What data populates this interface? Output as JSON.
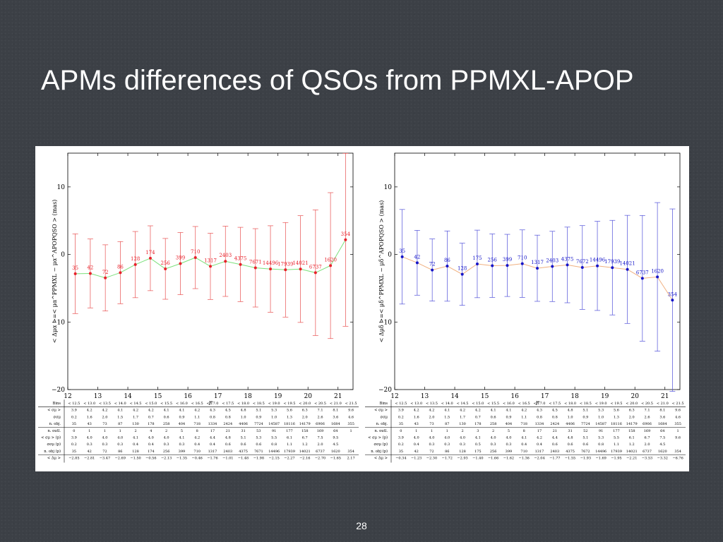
{
  "slide": {
    "title": "APMs differences of QSOs from PPMXL-APOP",
    "page_number": "28"
  },
  "chart_data": [
    {
      "type": "line",
      "xlabel": "r",
      "ylabel": "< Δμα >=< μα^PPMXL − μα^APOPQSO > (mas)",
      "xlim": [
        12,
        21.5
      ],
      "ylim": [
        -20,
        15
      ],
      "xticks": [
        "12",
        "13",
        "14",
        "15",
        "16",
        "17",
        "18",
        "19",
        "20",
        "21"
      ],
      "yticks": [
        "10",
        "0",
        "−10",
        "−20"
      ],
      "colors": {
        "points": "#e8202a",
        "line": "#7be07b",
        "errorbars": "#e85050"
      },
      "x": [
        12.25,
        12.75,
        13.25,
        13.75,
        14.25,
        14.75,
        15.25,
        15.75,
        16.25,
        16.75,
        17.25,
        17.75,
        18.25,
        18.75,
        19.25,
        19.75,
        20.25,
        20.75,
        21.25
      ],
      "y": [
        -2.85,
        -2.81,
        -3.47,
        -2.69,
        -1.5,
        -0.56,
        -2.13,
        -1.35,
        -0.46,
        -1.76,
        -1.01,
        -1.48,
        -1.98,
        -2.15,
        -2.27,
        -2.16,
        -2.7,
        -1.65,
        2.17
      ],
      "yerr": [
        5.9,
        5.1,
        4.9,
        4.6,
        4.9,
        4.8,
        4.5,
        4.6,
        4.6,
        4.9,
        5.2,
        5.5,
        5.8,
        6.4,
        7.0,
        7.9,
        9.3,
        10.8,
        12.8
      ],
      "point_labels": [
        "35",
        "42",
        "72",
        "86",
        "128",
        "174",
        "256",
        "399",
        "710",
        "1317",
        "2403",
        "4375",
        "7671",
        "14496",
        "17939",
        "14021",
        "6737",
        "1620",
        "354"
      ],
      "table": {
        "header": [
          "Bins",
          "< 12.5",
          "< 13.0",
          "< 13.5",
          "< 14.0",
          "< 14.5",
          "< 15.0",
          "< 15.5",
          "< 16.0",
          "< 16.5",
          "< 17.0",
          "< 17.5",
          "< 18.0",
          "< 18.5",
          "< 19.0",
          "< 19.5",
          "< 20.0",
          "< 20.5",
          "< 21.0",
          "< 21.5"
        ],
        "rows": [
          [
            "< σμ >",
            "3.9",
            "4.2",
            "4.2",
            "4.1",
            "4.2",
            "4.2",
            "4.1",
            "4.1",
            "4.2",
            "4.3",
            "4.5",
            "4.8",
            "5.1",
            "5.3",
            "5.6",
            "6.3",
            "7.1",
            "8.1",
            "9.6"
          ],
          [
            "σσμ",
            "0.2",
            "1.6",
            "2.0",
            "1.5",
            "1.7",
            "0.7",
            "0.6",
            "0.9",
            "1.1",
            "0.8",
            "0.8",
            "1.0",
            "0.9",
            "1.0",
            "1.3",
            "2.0",
            "2.6",
            "3.6",
            "4.6"
          ],
          [
            "n. obj.",
            "35",
            "43",
            "73",
            "87",
            "130",
            "178",
            "258",
            "404",
            "718",
            "1334",
            "2424",
            "4406",
            "7724",
            "14587",
            "18116",
            "14179",
            "6906",
            "1684",
            "355"
          ],
          [
            "n. outl.",
            "0",
            "1",
            "1",
            "1",
            "2",
            "4",
            "2",
            "5",
            "8",
            "17",
            "21",
            "31",
            "53",
            "91",
            "177",
            "158",
            "169",
            "64",
            "1"
          ],
          [
            "< σμ > (p)",
            "3.9",
            "4.0",
            "4.0",
            "4.0",
            "4.1",
            "4.0",
            "4.0",
            "4.1",
            "4.2",
            "4.4",
            "4.8",
            "5.1",
            "5.3",
            "5.5",
            "6.1",
            "6.7",
            "7.5",
            "9.5",
            ""
          ],
          [
            "σσμ (p)",
            "0.2",
            "0.3",
            "0.3",
            "0.3",
            "0.4",
            "0.4",
            "0.3",
            "0.3",
            "0.4",
            "0.4",
            "0.6",
            "0.6",
            "0.6",
            "0.8",
            "1.1",
            "1.2",
            "2.0",
            "4.5",
            ""
          ],
          [
            "n. obj (p)",
            "35",
            "42",
            "72",
            "86",
            "128",
            "174",
            "256",
            "399",
            "710",
            "1317",
            "2403",
            "4375",
            "7671",
            "14496",
            "17939",
            "14021",
            "6737",
            "1620",
            "354"
          ],
          [
            "< Δμ >",
            "−2.85",
            "−2.81",
            "−3.47",
            "−2.69",
            "−1.50",
            "−0.56",
            "−2.13",
            "−1.35",
            "−0.46",
            "−1.76",
            "−1.01",
            "−1.48",
            "−1.98",
            "−2.15",
            "−2.27",
            "−2.16",
            "−2.70",
            "−1.65",
            "2.17"
          ]
        ]
      }
    },
    {
      "type": "line",
      "xlabel": "r",
      "ylabel": "< Δμδ >=< μδ^PPMXL − μδ^APOPQSO > (mas)",
      "xlim": [
        12,
        21.5
      ],
      "ylim": [
        -20,
        15
      ],
      "xticks": [
        "12",
        "13",
        "14",
        "15",
        "16",
        "17",
        "18",
        "19",
        "20",
        "21"
      ],
      "yticks": [
        "10",
        "0",
        "−10",
        "−20"
      ],
      "colors": {
        "points": "#1414c8",
        "line": "#f0b080",
        "errorbars": "#5050d8"
      },
      "x": [
        12.25,
        12.75,
        13.25,
        13.75,
        14.25,
        14.75,
        15.25,
        15.75,
        16.25,
        16.75,
        17.25,
        17.75,
        18.25,
        18.75,
        19.25,
        19.75,
        20.25,
        20.75,
        21.25
      ],
      "y": [
        -0.34,
        -1.23,
        -2.3,
        -1.72,
        -2.93,
        -1.4,
        -1.66,
        -1.62,
        -1.36,
        -2.04,
        -1.77,
        -1.55,
        -1.93,
        -1.69,
        -1.95,
        -2.21,
        -3.53,
        -3.32,
        -6.76
      ],
      "yerr": [
        7.0,
        4.8,
        4.6,
        5.2,
        4.6,
        5.0,
        4.7,
        4.6,
        5.0,
        4.9,
        5.2,
        5.6,
        6.2,
        6.6,
        7.0,
        8.0,
        9.3,
        11.0,
        13.5
      ],
      "point_labels": [
        "35",
        "42",
        "72",
        "86",
        "128",
        "175",
        "256",
        "399",
        "710",
        "1317",
        "2403",
        "4375",
        "7672",
        "14496",
        "17939",
        "14021",
        "6737",
        "1620",
        "354"
      ],
      "table": {
        "header": [
          "Bins",
          "< 12.5",
          "< 13.0",
          "< 13.5",
          "< 14.0",
          "< 14.5",
          "< 15.0",
          "< 15.5",
          "< 16.0",
          "< 16.5",
          "< 17.0",
          "< 17.5",
          "< 18.0",
          "< 18.5",
          "< 19.0",
          "< 19.5",
          "< 20.0",
          "< 20.5",
          "< 21.0",
          "< 21.5"
        ],
        "rows": [
          [
            "< σμ >",
            "3.9",
            "4.2",
            "4.2",
            "4.1",
            "4.2",
            "4.2",
            "4.1",
            "4.1",
            "4.2",
            "4.3",
            "4.5",
            "4.8",
            "5.1",
            "5.3",
            "5.6",
            "6.3",
            "7.1",
            "8.1",
            "9.6"
          ],
          [
            "σσμ",
            "0.2",
            "1.6",
            "2.0",
            "1.5",
            "1.7",
            "0.7",
            "0.6",
            "0.9",
            "1.1",
            "0.8",
            "0.8",
            "1.0",
            "0.9",
            "1.0",
            "1.3",
            "2.0",
            "2.6",
            "3.6",
            "4.6"
          ],
          [
            "n. obj.",
            "35",
            "43",
            "73",
            "87",
            "130",
            "178",
            "258",
            "404",
            "718",
            "1334",
            "2424",
            "4406",
            "7724",
            "14587",
            "18116",
            "14179",
            "6906",
            "1684",
            "355"
          ],
          [
            "n. outl.",
            "0",
            "1",
            "1",
            "1",
            "2",
            "3",
            "2",
            "5",
            "8",
            "17",
            "21",
            "31",
            "52",
            "91",
            "177",
            "158",
            "169",
            "64",
            "1"
          ],
          [
            "< σμ > (p)",
            "3.9",
            "4.0",
            "4.0",
            "4.0",
            "4.0",
            "4.1",
            "4.0",
            "4.0",
            "4.1",
            "4.2",
            "4.4",
            "4.8",
            "5.1",
            "5.3",
            "5.5",
            "6.1",
            "6.7",
            "7.5",
            "9.6"
          ],
          [
            "σσμ (p)",
            "0.2",
            "0.4",
            "0.3",
            "0.3",
            "0.3",
            "0.5",
            "0.3",
            "0.3",
            "0.4",
            "0.4",
            "0.6",
            "0.6",
            "0.6",
            "0.8",
            "1.1",
            "1.2",
            "2.0",
            "4.5",
            ""
          ],
          [
            "n. obj (p)",
            "35",
            "42",
            "72",
            "86",
            "128",
            "175",
            "256",
            "399",
            "710",
            "1317",
            "2403",
            "4375",
            "7672",
            "14496",
            "17939",
            "14021",
            "6737",
            "1620",
            "354"
          ],
          [
            "< Δμ >",
            "−0.34",
            "−1.23",
            "−2.30",
            "−1.72",
            "−2.93",
            "−1.40",
            "−1.66",
            "−1.62",
            "−1.36",
            "−2.04",
            "−1.77",
            "−1.55",
            "−1.93",
            "−1.69",
            "−1.95",
            "−2.21",
            "−3.53",
            "−3.32",
            "−6.76"
          ]
        ]
      }
    }
  ]
}
